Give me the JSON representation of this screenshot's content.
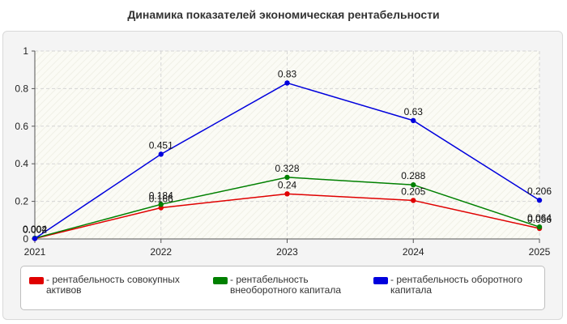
{
  "chart_data": {
    "type": "line",
    "title": "Динамика показателей экономическая рентабельности",
    "x": [
      "2021",
      "2022",
      "2023",
      "2024",
      "2025"
    ],
    "ylim": [
      0,
      1
    ],
    "yticks": [
      "0",
      "0.2",
      "0.4",
      "0.6",
      "0.8",
      "1"
    ],
    "grid": true,
    "legend_position": "bottom",
    "series": [
      {
        "name": "- рентабельность совокупных активов",
        "color": "#e00000",
        "values": [
          0.002,
          0.166,
          0.24,
          0.205,
          0.056
        ],
        "labels": [
          "0.002",
          "0.166",
          "0.24",
          "0.205",
          "0.056"
        ]
      },
      {
        "name": "- рентабельность внеоборотного капитала",
        "color": "#008000",
        "values": [
          0.004,
          0.184,
          0.328,
          0.288,
          0.064
        ],
        "labels": [
          "0.004",
          "0.184",
          "0.328",
          "0.288",
          "0.064"
        ]
      },
      {
        "name": "- рентабельность оборотного капитала",
        "color": "#0000dd",
        "values": [
          0.002,
          0.451,
          0.83,
          0.63,
          0.206
        ],
        "labels": [
          "0.002",
          "0.451",
          "0.83",
          "0.63",
          "0.206"
        ]
      }
    ]
  }
}
